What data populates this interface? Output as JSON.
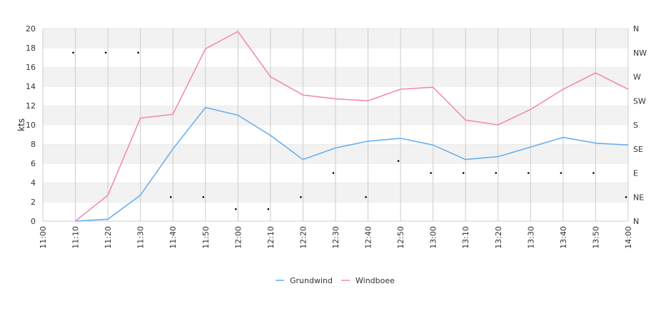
{
  "chart_data": {
    "type": "line",
    "ylabel": "kts",
    "ylim": [
      0,
      20
    ],
    "y_ticks": [
      "0",
      "2",
      "4",
      "6",
      "8",
      "10",
      "12",
      "14",
      "16",
      "18",
      "20"
    ],
    "y2_ticks": [
      "N",
      "NE",
      "E",
      "SE",
      "S",
      "SW",
      "W",
      "NW",
      "N"
    ],
    "x": [
      "11:00",
      "11:10",
      "11:20",
      "11:30",
      "11:40",
      "11:50",
      "12:00",
      "12:10",
      "12:20",
      "12:30",
      "12:40",
      "12:50",
      "13:00",
      "13:10",
      "13:20",
      "13:30",
      "13:40",
      "13:50",
      "14:00"
    ],
    "grid": true,
    "legend_position": "bottom",
    "series": [
      {
        "name": "Grundwind",
        "color": "#6ab0ee",
        "values": [
          null,
          0.0,
          0.2,
          2.7,
          7.5,
          11.8,
          11.0,
          8.9,
          6.4,
          7.6,
          8.3,
          8.6,
          7.9,
          6.4,
          6.7,
          7.7,
          8.7,
          8.1,
          7.9
        ]
      },
      {
        "name": "Windboee",
        "color": "#f08cba",
        "values": [
          null,
          0.0,
          2.7,
          10.7,
          11.1,
          17.9,
          19.7,
          15.0,
          13.1,
          12.7,
          12.5,
          13.7,
          13.9,
          10.5,
          10.0,
          11.6,
          13.7,
          15.4,
          13.7
        ]
      }
    ],
    "direction_markers": [
      {
        "x": "11:10",
        "direction": "NW"
      },
      {
        "x": "11:20",
        "direction": "NW"
      },
      {
        "x": "11:30",
        "direction": "NW"
      },
      {
        "x": "11:40",
        "direction": "NE"
      },
      {
        "x": "11:50",
        "direction": "NE"
      },
      {
        "x": "12:00",
        "direction": "NNE"
      },
      {
        "x": "12:10",
        "direction": "NNE"
      },
      {
        "x": "12:20",
        "direction": "NE"
      },
      {
        "x": "12:30",
        "direction": "E"
      },
      {
        "x": "12:40",
        "direction": "NE"
      },
      {
        "x": "12:50",
        "direction": "ESE"
      },
      {
        "x": "13:00",
        "direction": "E"
      },
      {
        "x": "13:10",
        "direction": "E"
      },
      {
        "x": "13:20",
        "direction": "E"
      },
      {
        "x": "13:30",
        "direction": "E"
      },
      {
        "x": "13:40",
        "direction": "E"
      },
      {
        "x": "13:50",
        "direction": "E"
      },
      {
        "x": "14:00",
        "direction": "NE"
      }
    ]
  }
}
